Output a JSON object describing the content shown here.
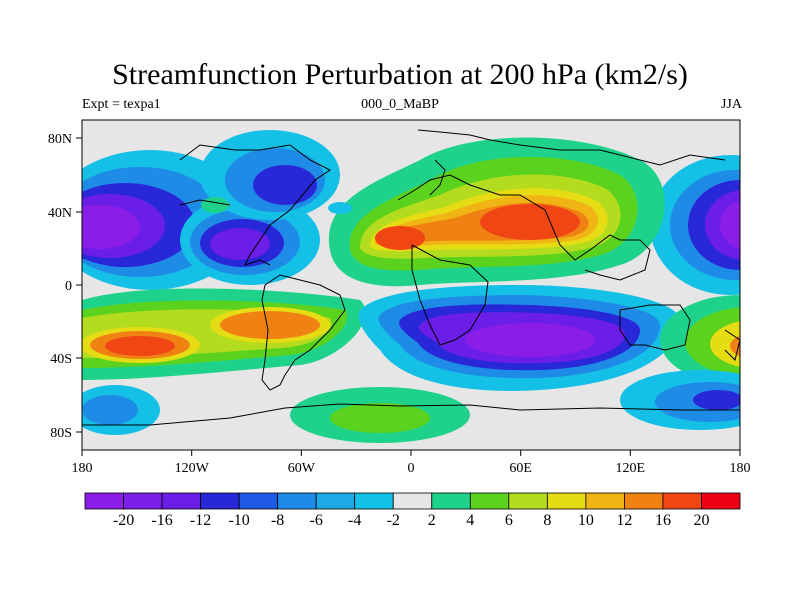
{
  "title": "Streamfunction Perturbation at 200 hPa (km2/s)",
  "subtitle_left": "Expt = texpa1",
  "subtitle_center": "000_0_MaBP",
  "subtitle_right": "JJA",
  "x_ticks": [
    "180",
    "120W",
    "60W",
    "0",
    "60E",
    "120E",
    "180"
  ],
  "y_ticks": [
    "80N",
    "40N",
    "0",
    "40S",
    "80S"
  ],
  "colorbar": {
    "colors": [
      "#8a1ee6",
      "#7a1ee8",
      "#6a1ee8",
      "#2828d8",
      "#1e5ae6",
      "#1e8ce6",
      "#1ea8e6",
      "#14c0e6",
      "#e6e6e6",
      "#1ed28c",
      "#5ad21e",
      "#b4dc1e",
      "#e6dc14",
      "#f0b414",
      "#f08214",
      "#f04614",
      "#f00014"
    ],
    "labels": [
      "-20",
      "-16",
      "-12",
      "-10",
      "-8",
      "-6",
      "-4",
      "-2",
      "2",
      "4",
      "6",
      "8",
      "10",
      "12",
      "16",
      "20"
    ]
  },
  "chart_data": {
    "type": "filled-contour-map",
    "variable": "Streamfunction Perturbation at 200 hPa (km2/s)",
    "levels": [
      -20,
      -16,
      -12,
      -10,
      -8,
      -6,
      -4,
      -2,
      2,
      4,
      6,
      8,
      10,
      12,
      16,
      20
    ],
    "xlim": [
      -180,
      180
    ],
    "ylim": [
      -90,
      90
    ],
    "anomalies": [
      {
        "lon": -165,
        "lat": 30,
        "value": -21
      },
      {
        "lon": 170,
        "lat": 32,
        "value": -21
      },
      {
        "lon": -95,
        "lat": 22,
        "value": -20
      },
      {
        "lon": -75,
        "lat": 52,
        "value": -13
      },
      {
        "lon": 50,
        "lat": 30,
        "value": 18
      },
      {
        "lon": 20,
        "lat": 25,
        "value": 17
      },
      {
        "lon": -140,
        "lat": -32,
        "value": 14
      },
      {
        "lon": -75,
        "lat": -22,
        "value": 13
      },
      {
        "lon": 75,
        "lat": -28,
        "value": -21
      },
      {
        "lon": 170,
        "lat": -30,
        "value": 12
      },
      {
        "lon": -30,
        "lat": -65,
        "value": 6
      },
      {
        "lon": 160,
        "lat": -60,
        "value": -10
      },
      {
        "lon": -170,
        "lat": -65,
        "value": -8
      }
    ]
  }
}
